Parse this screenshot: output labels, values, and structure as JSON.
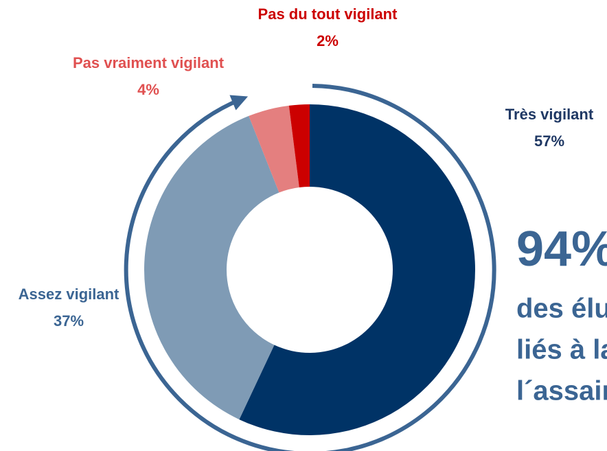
{
  "chart_data": {
    "type": "pie",
    "categories": [
      "Très vigilant",
      "Assez vigilant",
      "Pas vraiment vigilant",
      "Pas du tout vigilant"
    ],
    "values": [
      57,
      37,
      4,
      2
    ],
    "value_labels": [
      "57%",
      "37%",
      "4%",
      "2%"
    ],
    "colors": [
      "#003366",
      "#7f9bb5",
      "#e47f7f",
      "#cc0000"
    ],
    "annotations": [
      "94%",
      "des élu",
      "liés à la",
      "l´assain"
    ]
  }
}
